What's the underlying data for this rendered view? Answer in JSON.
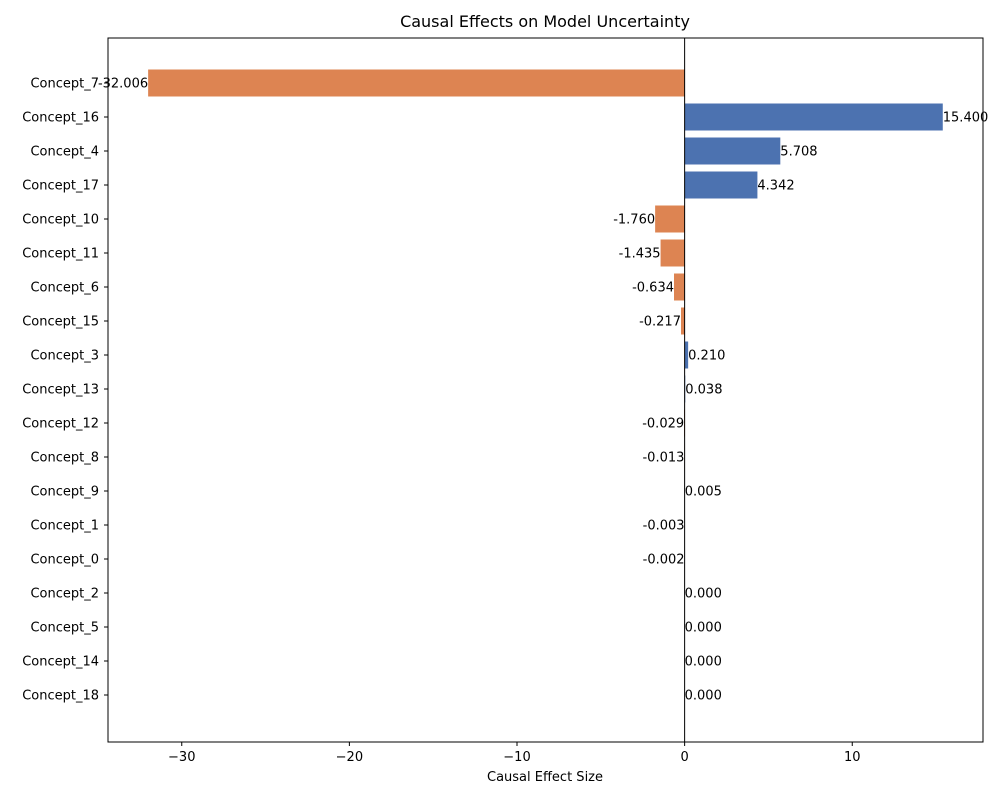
{
  "chart_data": {
    "type": "bar",
    "orientation": "horizontal",
    "title": "Causal Effects on Model Uncertainty",
    "xlabel": "Causal Effect Size",
    "ylabel": "",
    "xlim": [
      -34.4,
      17.8
    ],
    "xticks": [
      -30,
      -20,
      -10,
      0,
      10
    ],
    "grid": false,
    "legend": "none",
    "colors": {
      "positive": "#4c72b0",
      "negative": "#dd8452",
      "axis": "#000000"
    },
    "bars": [
      {
        "category": "Concept_7",
        "value": -32.006,
        "label": "-32.006"
      },
      {
        "category": "Concept_16",
        "value": 15.4,
        "label": "15.400"
      },
      {
        "category": "Concept_4",
        "value": 5.708,
        "label": "5.708"
      },
      {
        "category": "Concept_17",
        "value": 4.342,
        "label": "4.342"
      },
      {
        "category": "Concept_10",
        "value": -1.76,
        "label": "-1.760"
      },
      {
        "category": "Concept_11",
        "value": -1.435,
        "label": "-1.435"
      },
      {
        "category": "Concept_6",
        "value": -0.634,
        "label": "-0.634"
      },
      {
        "category": "Concept_15",
        "value": -0.217,
        "label": "-0.217"
      },
      {
        "category": "Concept_3",
        "value": 0.21,
        "label": "0.210"
      },
      {
        "category": "Concept_13",
        "value": 0.038,
        "label": "0.038"
      },
      {
        "category": "Concept_12",
        "value": -0.029,
        "label": "-0.029"
      },
      {
        "category": "Concept_8",
        "value": -0.013,
        "label": "-0.013"
      },
      {
        "category": "Concept_9",
        "value": 0.005,
        "label": "0.005"
      },
      {
        "category": "Concept_1",
        "value": -0.003,
        "label": "-0.003"
      },
      {
        "category": "Concept_0",
        "value": -0.002,
        "label": "-0.002"
      },
      {
        "category": "Concept_2",
        "value": 0.0,
        "label": "0.000"
      },
      {
        "category": "Concept_5",
        "value": 0.0,
        "label": "0.000"
      },
      {
        "category": "Concept_14",
        "value": 0.0,
        "label": "0.000"
      },
      {
        "category": "Concept_18",
        "value": 0.0,
        "label": "0.000"
      }
    ]
  }
}
